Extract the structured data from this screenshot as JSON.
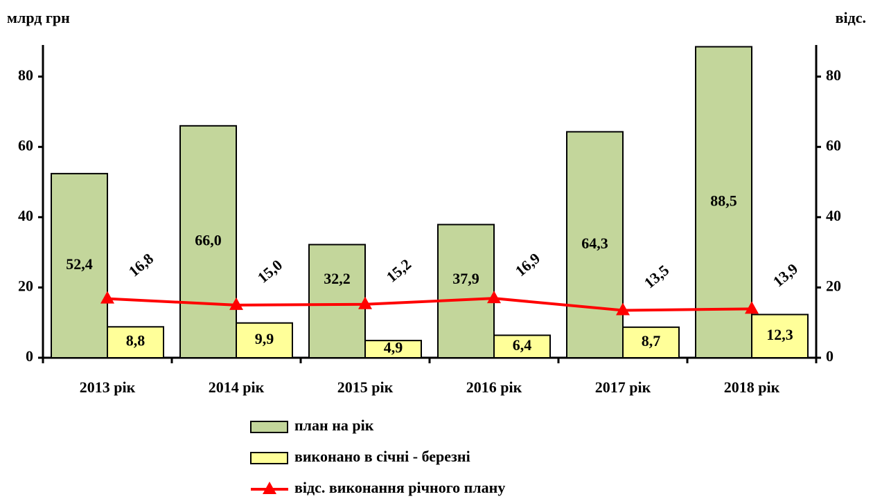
{
  "chart_data": {
    "type": "bar",
    "y_label": "млрд грн",
    "y2_label": "відс.",
    "categories": [
      "2013 рік",
      "2014 рік",
      "2015 рік",
      "2016 рік",
      "2017 рік",
      "2018 рік"
    ],
    "series": [
      {
        "name": "план на рік",
        "color": "#c3d69b",
        "values": [
          52.4,
          66.0,
          32.2,
          37.9,
          64.3,
          88.5
        ],
        "value_labels": [
          "52,4",
          "66,0",
          "32,2",
          "37,9",
          "64,3",
          "88,5"
        ]
      },
      {
        "name": "виконано в січні - березні",
        "color": "#ffff99",
        "values": [
          8.8,
          9.9,
          4.9,
          6.4,
          8.7,
          12.3
        ],
        "value_labels": [
          "8,8",
          "9,9",
          "4,9",
          "6,4",
          "8,7",
          "12,3"
        ]
      },
      {
        "name": "відс. виконання річного плану",
        "type": "line",
        "axis": "y2",
        "color": "#ff0000",
        "values": [
          16.8,
          15.0,
          15.2,
          16.9,
          13.5,
          13.9
        ],
        "value_labels": [
          "16,8",
          "15,0",
          "15,2",
          "16,9",
          "13,5",
          "13,9"
        ]
      }
    ],
    "ylim": [
      0,
      89
    ],
    "yticks": [
      0,
      20,
      40,
      60,
      80
    ],
    "y2lim": [
      0,
      89
    ],
    "y2ticks": [
      0,
      20,
      40,
      60,
      80
    ]
  }
}
